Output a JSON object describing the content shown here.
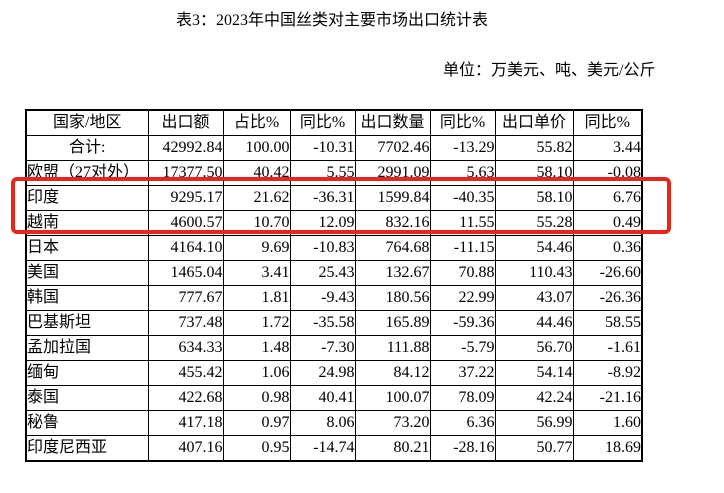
{
  "title": "表3：2023年中国丝类对主要市场出口统计表",
  "unit_note": "单位：万美元、吨、美元/公斤",
  "highlight": {
    "color": "#e5261d",
    "highlighted_rows": [
      "印度",
      "越南"
    ]
  },
  "chart_data": {
    "type": "table",
    "title": "表3：2023年中国丝类对主要市场出口统计表",
    "unit": "万美元、吨、美元/公斤",
    "headers": [
      "国家/地区",
      "出口额",
      "占比%",
      "同比%",
      "出口数量",
      "同比%",
      "出口单价",
      "同比%"
    ],
    "rows": [
      {
        "name": "合计:",
        "align": "center",
        "values": [
          "42992.84",
          "100.00",
          "-10.31",
          "7702.46",
          "-13.29",
          "55.82",
          "3.44"
        ]
      },
      {
        "name": "欧盟（27对外）",
        "align": "left",
        "values": [
          "17377.50",
          "40.42",
          "5.55",
          "2991.09",
          "5.63",
          "58.10",
          "-0.08"
        ]
      },
      {
        "name": "印度",
        "align": "left",
        "values": [
          "9295.17",
          "21.62",
          "-36.31",
          "1599.84",
          "-40.35",
          "58.10",
          "6.76"
        ]
      },
      {
        "name": "越南",
        "align": "left",
        "values": [
          "4600.57",
          "10.70",
          "12.09",
          "832.16",
          "11.55",
          "55.28",
          "0.49"
        ]
      },
      {
        "name": "日本",
        "align": "left",
        "values": [
          "4164.10",
          "9.69",
          "-10.83",
          "764.68",
          "-11.15",
          "54.46",
          "0.36"
        ]
      },
      {
        "name": "美国",
        "align": "left",
        "values": [
          "1465.04",
          "3.41",
          "25.43",
          "132.67",
          "70.88",
          "110.43",
          "-26.60"
        ]
      },
      {
        "name": "韩国",
        "align": "left",
        "values": [
          "777.67",
          "1.81",
          "-9.43",
          "180.56",
          "22.99",
          "43.07",
          "-26.36"
        ]
      },
      {
        "name": "巴基斯坦",
        "align": "left",
        "values": [
          "737.48",
          "1.72",
          "-35.58",
          "165.89",
          "-59.36",
          "44.46",
          "58.55"
        ]
      },
      {
        "name": "孟加拉国",
        "align": "left",
        "values": [
          "634.33",
          "1.48",
          "-7.30",
          "111.88",
          "-5.79",
          "56.70",
          "-1.61"
        ]
      },
      {
        "name": "缅甸",
        "align": "left",
        "values": [
          "455.42",
          "1.06",
          "24.98",
          "84.12",
          "37.22",
          "54.14",
          "-8.92"
        ]
      },
      {
        "name": "泰国",
        "align": "left",
        "values": [
          "422.68",
          "0.98",
          "40.41",
          "100.07",
          "78.09",
          "42.24",
          "-21.16"
        ]
      },
      {
        "name": "秘鲁",
        "align": "left",
        "values": [
          "417.18",
          "0.97",
          "8.06",
          "73.20",
          "6.36",
          "56.99",
          "1.60"
        ]
      },
      {
        "name": "印度尼西亚",
        "align": "left",
        "values": [
          "407.16",
          "0.95",
          "-14.74",
          "80.21",
          "-28.16",
          "50.77",
          "18.69"
        ]
      }
    ]
  }
}
